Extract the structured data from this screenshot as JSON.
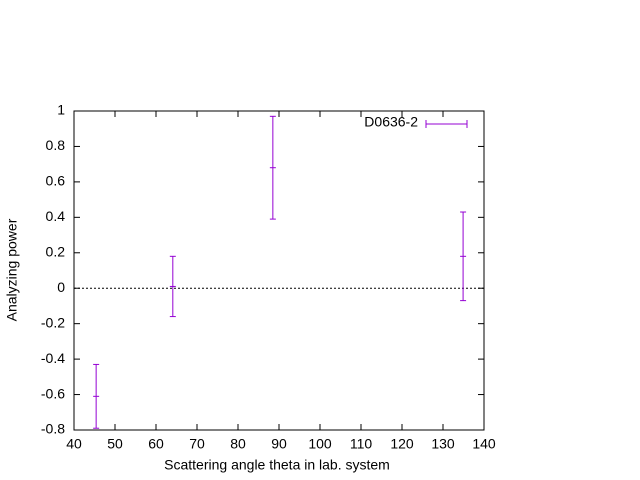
{
  "chart_data": {
    "type": "errorbar",
    "xlabel": "Scattering angle theta in lab. system",
    "ylabel": "Analyzing power",
    "xlim": [
      40,
      140
    ],
    "xticks": [
      40,
      50,
      60,
      70,
      80,
      90,
      100,
      110,
      120,
      130,
      140
    ],
    "ylim": [
      -0.8,
      1
    ],
    "yticks": [
      -0.8,
      -0.6,
      -0.4,
      -0.2,
      0,
      0.2,
      0.4,
      0.6,
      0.8,
      1
    ],
    "zero_line": true,
    "legend": "top-right",
    "x": [
      45.4,
      64.1,
      88.5,
      134.9
    ],
    "series": [
      {
        "name": "D0636-2",
        "color": "#9400d3",
        "values": [
          -0.61,
          0.01,
          0.68,
          0.18
        ],
        "errors": [
          0.18,
          0.17,
          0.29,
          0.25
        ]
      }
    ]
  }
}
